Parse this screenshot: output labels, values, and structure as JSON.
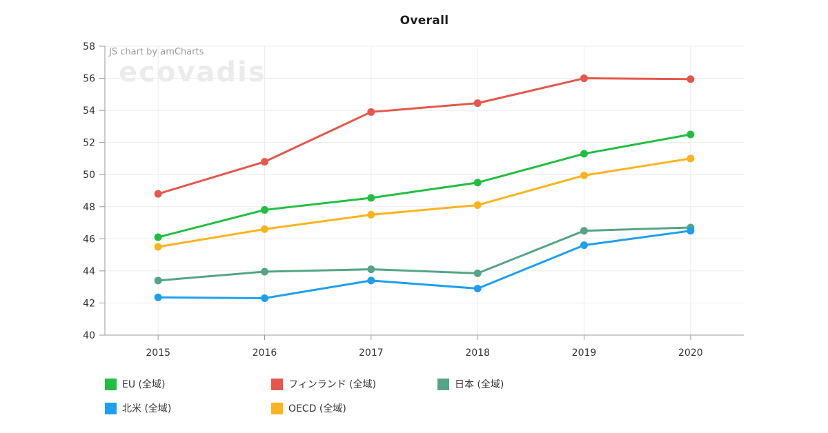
{
  "title": "Overall",
  "watermark": {
    "credit": "JS chart by amCharts",
    "brand": "ecovadis"
  },
  "chart_data": {
    "type": "line",
    "title": "Overall",
    "x": [
      "2015",
      "2016",
      "2017",
      "2018",
      "2019",
      "2020"
    ],
    "yticks": [
      40,
      42,
      44,
      46,
      48,
      50,
      52,
      54,
      56,
      58
    ],
    "ylim": [
      40,
      58
    ],
    "ytick_step": 2,
    "grid": true,
    "legend_position": "bottom",
    "series": [
      {
        "name": "EU (全域)",
        "color": "#20bf40",
        "values": [
          46.1,
          47.8,
          48.55,
          49.5,
          51.3,
          52.5
        ]
      },
      {
        "name": "フィンランド (全域)",
        "color": "#e4574a",
        "values": [
          48.8,
          50.8,
          53.9,
          54.45,
          56.0,
          55.95
        ]
      },
      {
        "name": "日本 (全域)",
        "color": "#54a585",
        "values": [
          43.4,
          43.95,
          44.1,
          43.85,
          46.5,
          46.7
        ]
      },
      {
        "name": "北米 (全域)",
        "color": "#1d9ff0",
        "values": [
          42.35,
          42.3,
          43.4,
          42.9,
          45.6,
          46.5
        ]
      },
      {
        "name": "OECD (全域)",
        "color": "#fcb31e",
        "values": [
          45.5,
          46.6,
          47.5,
          48.1,
          49.95,
          51.0
        ]
      }
    ]
  },
  "colors": {
    "grid": "#ececec",
    "axis": "#999999",
    "tick": "#999999",
    "axis_label": "#333333",
    "credit_text": "#9b9b9b",
    "title_text": "#1f1f1f",
    "watermark_text": "#000000"
  }
}
